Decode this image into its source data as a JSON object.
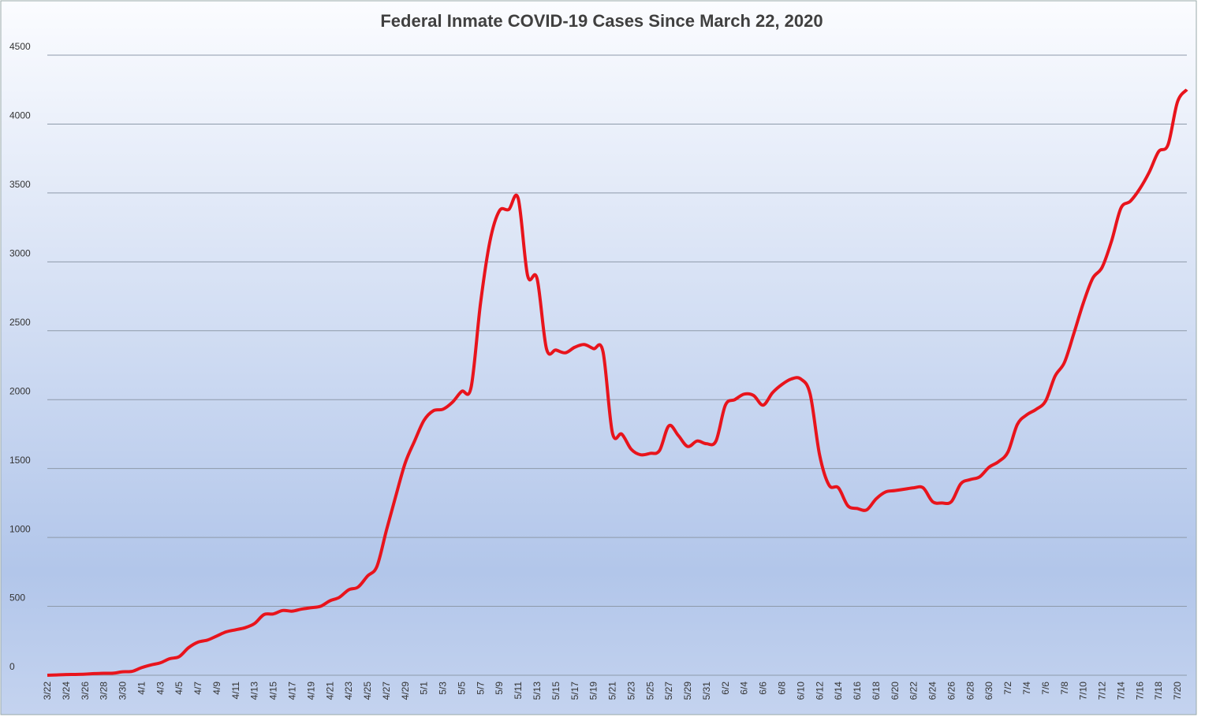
{
  "chart_data": {
    "type": "line",
    "title": "Federal Inmate COVID-19 Cases Since March 22, 2020",
    "categories": [
      "3/22",
      null,
      "3/24",
      null,
      "3/26",
      null,
      "3/28",
      null,
      "3/30",
      null,
      "4/1",
      null,
      "4/3",
      null,
      "4/5",
      null,
      "4/7",
      null,
      "4/9",
      null,
      "4/11",
      null,
      "4/13",
      null,
      "4/15",
      null,
      "4/17",
      null,
      "4/19",
      null,
      "4/21",
      null,
      "4/23",
      null,
      "4/25",
      null,
      "4/27",
      null,
      "4/29",
      null,
      "5/1",
      null,
      "5/3",
      null,
      "5/5",
      null,
      "5/7",
      null,
      "5/9",
      null,
      "5/11",
      null,
      "5/13",
      null,
      "5/15",
      null,
      "5/17",
      null,
      "5/19",
      null,
      "5/21",
      null,
      "5/23",
      null,
      "5/25",
      null,
      "5/27",
      null,
      "5/29",
      null,
      "5/31",
      null,
      "6/2",
      null,
      "6/4",
      null,
      "6/6",
      null,
      "6/8",
      null,
      "6/10",
      null,
      "6/12",
      null,
      "6/14",
      null,
      "6/16",
      null,
      "6/18",
      null,
      "6/20",
      null,
      "6/22",
      null,
      "6/24",
      null,
      "6/26",
      null,
      "6/28",
      null,
      "6/30",
      null,
      "7/2",
      null,
      "7/4",
      null,
      "7/6",
      null,
      "7/8",
      null,
      "7/10",
      null,
      "7/12",
      null,
      "7/14",
      null,
      "7/16",
      null,
      "7/18",
      null,
      "7/20",
      null
    ],
    "series": [
      {
        "name": "Cases",
        "color": "#e8141c",
        "values": [
          0,
          2,
          5,
          6,
          8,
          12,
          14,
          15,
          25,
          28,
          55,
          75,
          90,
          120,
          135,
          200,
          240,
          255,
          285,
          315,
          330,
          345,
          375,
          440,
          445,
          470,
          465,
          480,
          490,
          500,
          540,
          565,
          620,
          640,
          720,
          790,
          1050,
          1300,
          1540,
          1700,
          1850,
          1920,
          1930,
          1980,
          2060,
          2090,
          2700,
          3150,
          3370,
          3380,
          3460,
          2900,
          2880,
          2370,
          2360,
          2340,
          2380,
          2400,
          2370,
          2350,
          1760,
          1750,
          1640,
          1600,
          1610,
          1630,
          1810,
          1740,
          1660,
          1700,
          1680,
          1700,
          1960,
          2000,
          2040,
          2030,
          1960,
          2050,
          2110,
          2150,
          2150,
          2040,
          1600,
          1380,
          1360,
          1230,
          1210,
          1200,
          1280,
          1330,
          1340,
          1350,
          1360,
          1360,
          1260,
          1250,
          1260,
          1390,
          1420,
          1440,
          1510,
          1550,
          1620,
          1820,
          1890,
          1930,
          1990,
          2170,
          2270,
          2480,
          2700,
          2880,
          2960,
          3150,
          3390,
          3440,
          3530,
          3650,
          3800,
          3850,
          4160,
          4250
        ]
      }
    ],
    "ylim": [
      0,
      4500
    ],
    "yticks": [
      0,
      500,
      1000,
      1500,
      2000,
      2500,
      3000,
      3500,
      4000,
      4500
    ],
    "grid": true
  }
}
